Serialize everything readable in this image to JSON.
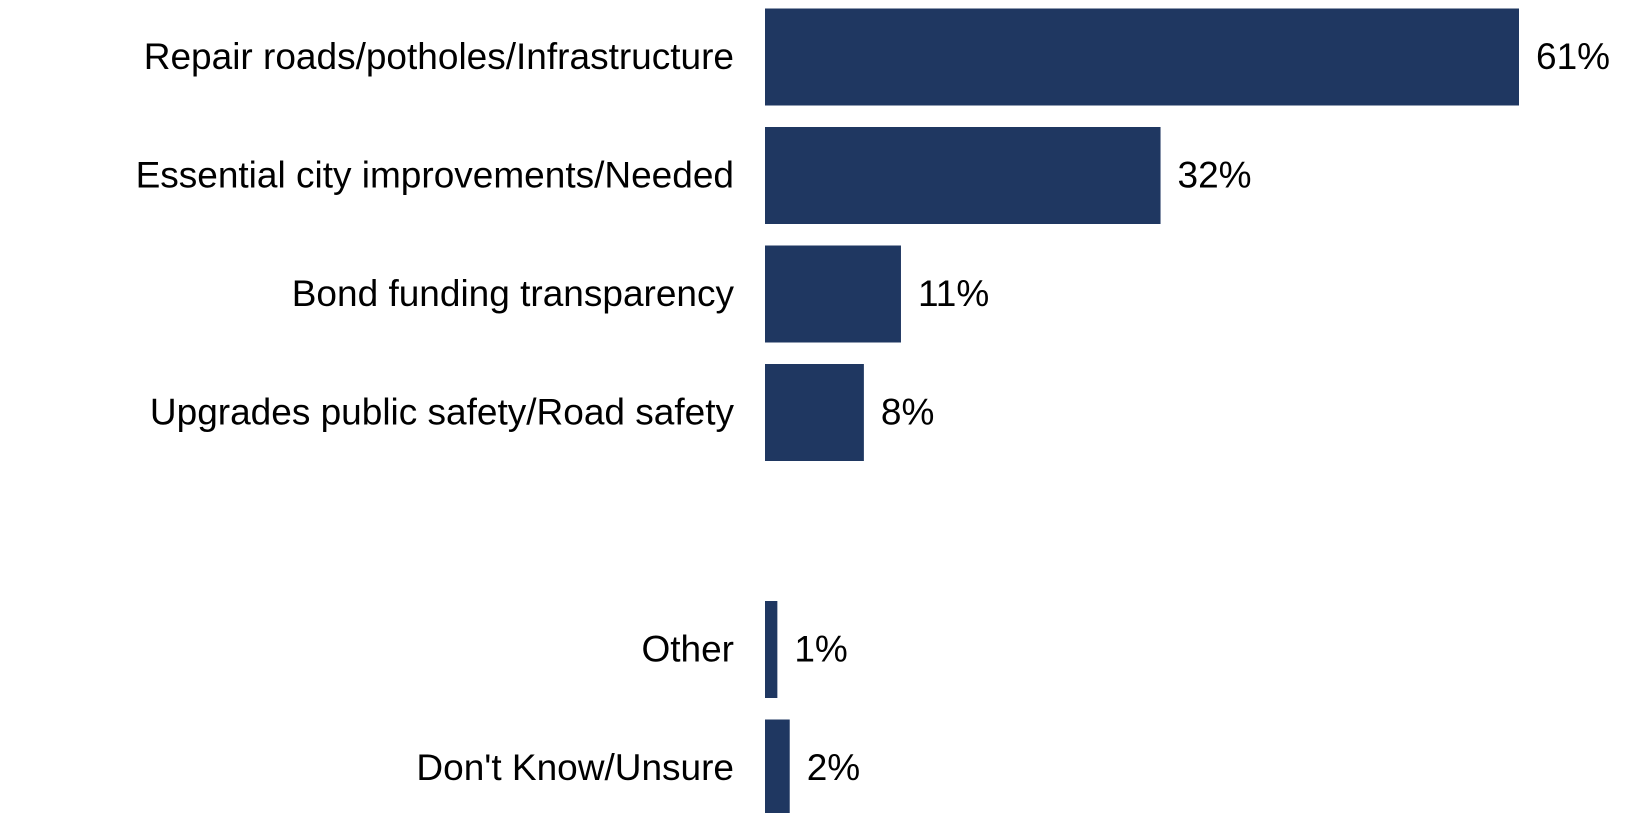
{
  "chart_data": {
    "type": "bar",
    "orientation": "horizontal",
    "categories": [
      "Repair roads/potholes/Infrastructure",
      "Essential city improvements/Needed",
      "Bond funding transparency",
      "Upgrades public safety/Road safety",
      null,
      "Other",
      "Don't Know/Unsure"
    ],
    "values": [
      61,
      32,
      11,
      8,
      null,
      1,
      2
    ],
    "value_labels": [
      "61%",
      "32%",
      "11%",
      "8%",
      null,
      "1%",
      "2%"
    ],
    "color": "#1f3761"
  }
}
